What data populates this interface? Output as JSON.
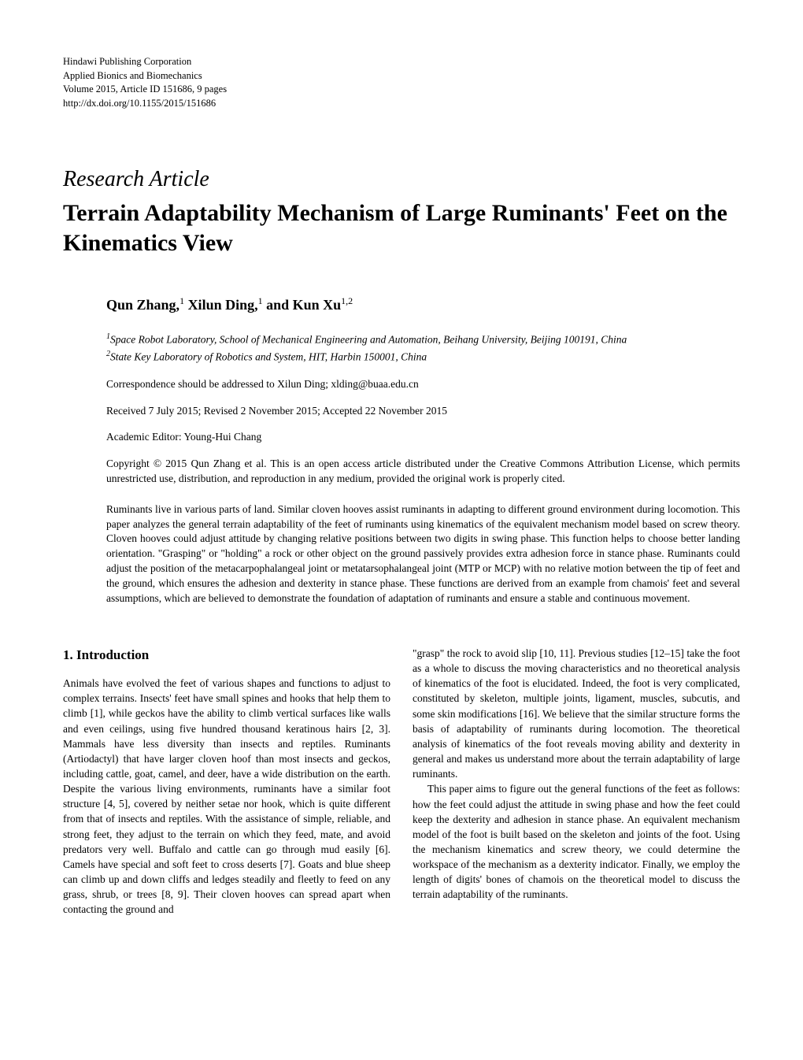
{
  "header": {
    "publisher": "Hindawi Publishing Corporation",
    "journal": "Applied Bionics and Biomechanics",
    "volume_line": "Volume 2015, Article ID 151686, 9 pages",
    "doi": "http://dx.doi.org/10.1155/2015/151686"
  },
  "article_type": "Research Article",
  "title": "Terrain Adaptability Mechanism of Large Ruminants' Feet on the Kinematics View",
  "authors_html": "Qun Zhang,<sup>1</sup> Xilun Ding,<sup>1</sup> and Kun Xu<sup>1,2</sup>",
  "affiliations": {
    "a1": "Space Robot Laboratory, School of Mechanical Engineering and Automation, Beihang University, Beijing 100191, China",
    "a2": "State Key Laboratory of Robotics and System, HIT, Harbin 150001, China"
  },
  "correspondence": "Correspondence should be addressed to Xilun Ding; xlding@buaa.edu.cn",
  "dates": "Received 7 July 2015; Revised 2 November 2015; Accepted 22 November 2015",
  "editor": "Academic Editor: Young-Hui Chang",
  "copyright": "Copyright © 2015 Qun Zhang et al. This is an open access article distributed under the Creative Commons Attribution License, which permits unrestricted use, distribution, and reproduction in any medium, provided the original work is properly cited.",
  "abstract": "Ruminants live in various parts of land. Similar cloven hooves assist ruminants in adapting to different ground environment during locomotion. This paper analyzes the general terrain adaptability of the feet of ruminants using kinematics of the equivalent mechanism model based on screw theory. Cloven hooves could adjust attitude by changing relative positions between two digits in swing phase. This function helps to choose better landing orientation. \"Grasping\" or \"holding\" a rock or other object on the ground passively provides extra adhesion force in stance phase. Ruminants could adjust the position of the metacarpophalangeal joint or metatarsophalangeal joint (MTP or MCP) with no relative motion between the tip of feet and the ground, which ensures the adhesion and dexterity in stance phase. These functions are derived from an example from chamois' feet and several assumptions, which are believed to demonstrate the foundation of adaptation of ruminants and ensure a stable and continuous movement.",
  "section1_heading": "1. Introduction",
  "col1_p1": "Animals have evolved the feet of various shapes and functions to adjust to complex terrains. Insects' feet have small spines and hooks that help them to climb [1], while geckos have the ability to climb vertical surfaces like walls and even ceilings, using five hundred thousand keratinous hairs [2, 3]. Mammals have less diversity than insects and reptiles. Ruminants (Artiodactyl) that have larger cloven hoof than most insects and geckos, including cattle, goat, camel, and deer, have a wide distribution on the earth. Despite the various living environments, ruminants have a similar foot structure [4, 5], covered by neither setae nor hook, which is quite different from that of insects and reptiles. With the assistance of simple, reliable, and strong feet, they adjust to the terrain on which they feed, mate, and avoid predators very well. Buffalo and cattle can go through mud easily [6]. Camels have special and soft feet to cross deserts [7]. Goats and blue sheep can climb up and down cliffs and ledges steadily and fleetly to feed on any grass, shrub, or trees [8, 9]. Their cloven hooves can spread apart when contacting the ground and",
  "col2_p1": "\"grasp\" the rock to avoid slip [10, 11]. Previous studies [12–15] take the foot as a whole to discuss the moving characteristics and no theoretical analysis of kinematics of the foot is elucidated. Indeed, the foot is very complicated, constituted by skeleton, multiple joints, ligament, muscles, subcutis, and some skin modifications [16]. We believe that the similar structure forms the basis of adaptability of ruminants during locomotion. The theoretical analysis of kinematics of the foot reveals moving ability and dexterity in general and makes us understand more about the terrain adaptability of large ruminants.",
  "col2_p2": "This paper aims to figure out the general functions of the feet as follows: how the feet could adjust the attitude in swing phase and how the feet could keep the dexterity and adhesion in stance phase. An equivalent mechanism model of the foot is built based on the skeleton and joints of the foot. Using the mechanism kinematics and screw theory, we could determine the workspace of the mechanism as a dexterity indicator. Finally, we employ the length of digits' bones of chamois on the theoretical model to discuss the terrain adaptability of the ruminants."
}
